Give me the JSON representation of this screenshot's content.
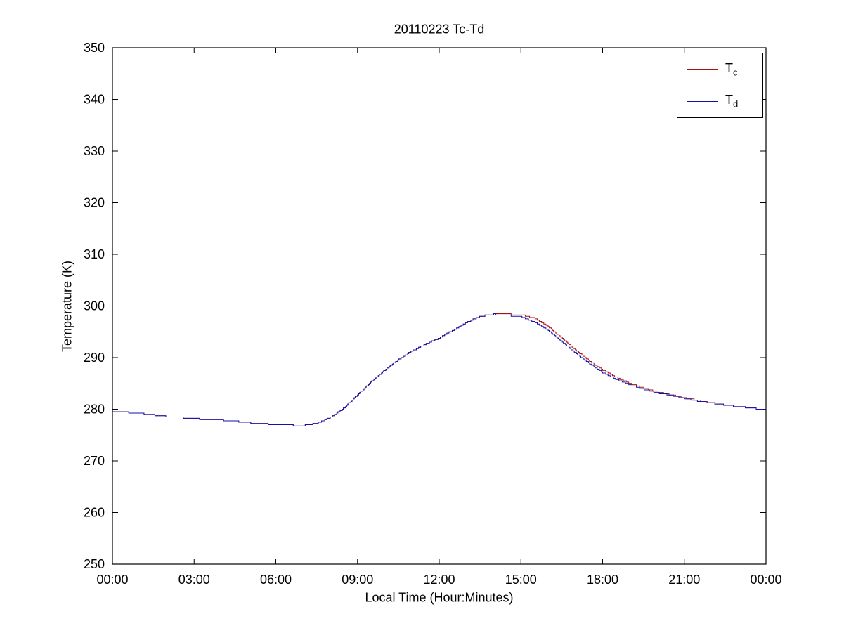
{
  "chart_data": {
    "type": "line",
    "title": "20110223 Tc-Td",
    "xlabel": "Local Time (Hour:Minutes)",
    "ylabel": "Temperature (K)",
    "xlim": [
      0,
      24
    ],
    "ylim": [
      250,
      350
    ],
    "grid": false,
    "legend_position": "top-right",
    "x_ticks": {
      "values": [
        0,
        3,
        6,
        9,
        12,
        15,
        18,
        21,
        24
      ],
      "labels": [
        "00:00",
        "03:00",
        "06:00",
        "09:00",
        "12:00",
        "15:00",
        "18:00",
        "21:00",
        "00:00"
      ]
    },
    "y_ticks": [
      250,
      260,
      270,
      280,
      290,
      300,
      310,
      320,
      330,
      340,
      350
    ],
    "axis_color": "#000000",
    "x_hours": [
      0,
      0.5,
      1,
      1.5,
      2,
      2.5,
      3,
      3.5,
      4,
      4.5,
      5,
      5.5,
      6,
      6.5,
      7,
      7.5,
      8,
      8.5,
      9,
      9.5,
      10,
      10.5,
      11,
      11.5,
      12,
      12.5,
      13,
      13.5,
      14,
      14.5,
      15,
      15.5,
      16,
      16.5,
      17,
      17.5,
      18,
      18.5,
      19,
      19.5,
      20,
      20.5,
      21,
      21.5,
      22,
      22.5,
      23,
      23.5,
      24
    ],
    "series": [
      {
        "name": "Tc",
        "label_base": "T",
        "label_sub": "c",
        "color": "#aa1111",
        "values": [
          279.5,
          279.4,
          279.2,
          278.9,
          278.6,
          278.4,
          278.2,
          278.0,
          277.9,
          277.7,
          277.4,
          277.2,
          277.0,
          276.9,
          276.8,
          277.3,
          278.4,
          280.2,
          282.8,
          285.3,
          287.6,
          289.6,
          291.3,
          292.6,
          293.8,
          295.3,
          296.8,
          298.0,
          298.4,
          298.4,
          298.3,
          297.6,
          296.0,
          293.8,
          291.5,
          289.4,
          287.6,
          286.2,
          285.0,
          284.1,
          283.4,
          282.8,
          282.2,
          281.7,
          281.2,
          280.8,
          280.5,
          280.2,
          279.9
        ]
      },
      {
        "name": "Td",
        "label_base": "T",
        "label_sub": "d",
        "color": "#1111aa",
        "values": [
          279.5,
          279.4,
          279.2,
          278.9,
          278.6,
          278.4,
          278.2,
          278.0,
          277.9,
          277.7,
          277.4,
          277.2,
          277.0,
          276.9,
          276.8,
          277.3,
          278.4,
          280.2,
          282.8,
          285.3,
          287.6,
          289.6,
          291.3,
          292.6,
          293.8,
          295.3,
          296.8,
          298.0,
          298.4,
          298.2,
          297.9,
          296.9,
          295.3,
          293.1,
          290.9,
          288.9,
          287.1,
          285.8,
          284.7,
          283.9,
          283.2,
          282.7,
          282.1,
          281.6,
          281.2,
          280.8,
          280.5,
          280.2,
          279.9
        ]
      }
    ]
  }
}
